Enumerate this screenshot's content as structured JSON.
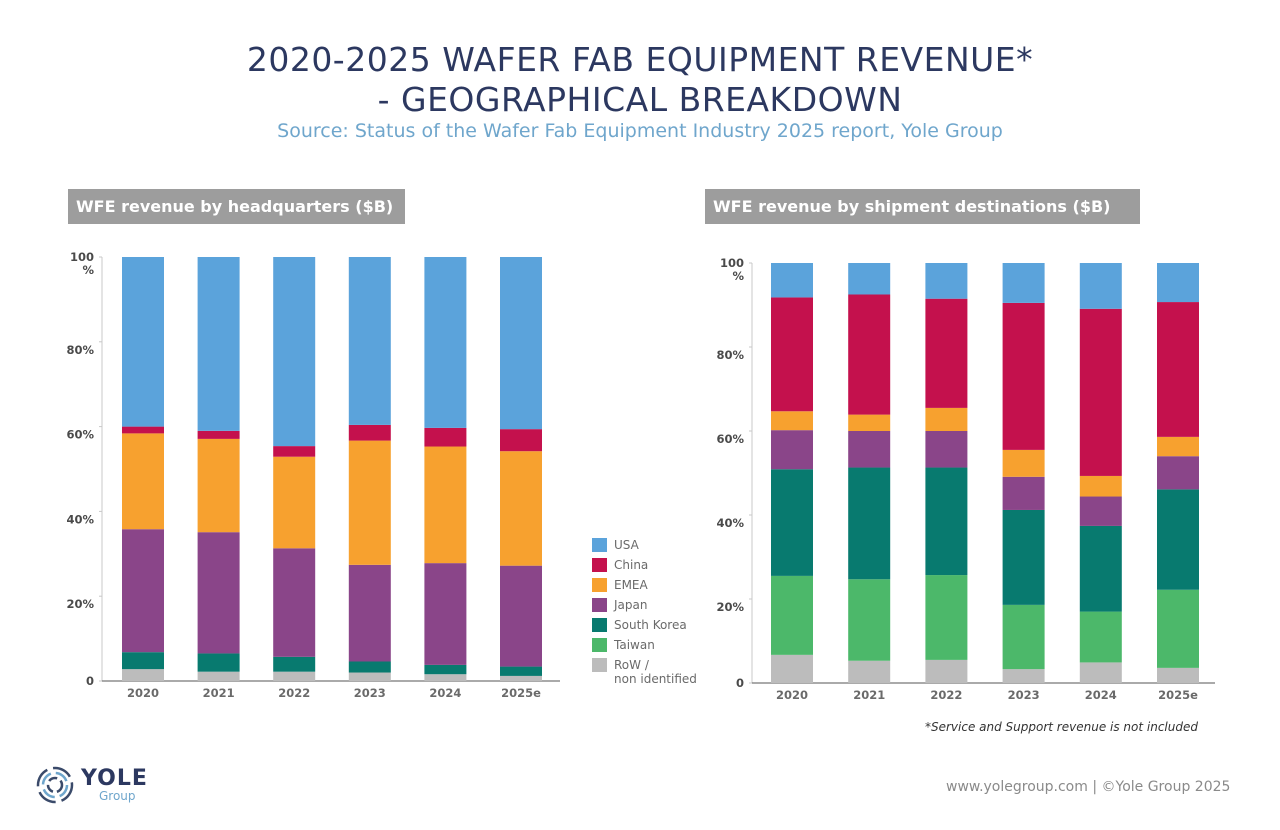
{
  "header": {
    "title_line1": "2020-2025 WAFER FAB EQUIPMENT REVENUE*",
    "title_line2": "- GEOGRAPHICAL BREAKDOWN",
    "subtitle": "Source: Status of the Wafer Fab Equipment Industry 2025 report, Yole Group"
  },
  "legend": [
    {
      "name": "USA",
      "color": "#5ba3db"
    },
    {
      "name": "China",
      "color": "#c4114d"
    },
    {
      "name": "EMEA",
      "color": "#f7a12f"
    },
    {
      "name": "Japan",
      "color": "#8a4589"
    },
    {
      "name": "South Korea",
      "color": "#087a6f"
    },
    {
      "name": "Taiwan",
      "color": "#4cb86a"
    },
    {
      "name": "RoW /\nnon identified",
      "color": "#bcbcbc"
    }
  ],
  "chart_data": [
    {
      "type": "bar",
      "stacked": true,
      "title": "WFE revenue by headquarters ($B)",
      "xlabel": "",
      "ylabel": "",
      "ylim": [
        0,
        100
      ],
      "yticks": [
        "0",
        "20%",
        "40%",
        "60%",
        "80%",
        "100\n%"
      ],
      "categories": [
        "2020",
        "2021",
        "2022",
        "2023",
        "2024",
        "2025e"
      ],
      "series": [
        {
          "name": "RoW / non identified",
          "values": [
            2.8,
            2.2,
            2.2,
            2.0,
            1.6,
            1.2
          ]
        },
        {
          "name": "Taiwan",
          "values": [
            0,
            0,
            0,
            0,
            0,
            0
          ]
        },
        {
          "name": "South Korea",
          "values": [
            4.0,
            4.3,
            3.5,
            2.6,
            2.2,
            2.2
          ]
        },
        {
          "name": "Japan",
          "values": [
            29.0,
            28.6,
            25.6,
            22.8,
            24.0,
            23.8
          ]
        },
        {
          "name": "EMEA",
          "values": [
            22.6,
            22.0,
            21.6,
            29.3,
            27.5,
            27.0
          ]
        },
        {
          "name": "China",
          "values": [
            1.6,
            1.9,
            2.5,
            3.7,
            4.4,
            5.2
          ]
        },
        {
          "name": "USA",
          "values": [
            40.0,
            41.0,
            44.6,
            39.6,
            40.3,
            40.6
          ]
        }
      ]
    },
    {
      "type": "bar",
      "stacked": true,
      "title": "WFE revenue by shipment destinations ($B)",
      "xlabel": "",
      "ylabel": "",
      "ylim": [
        0,
        100
      ],
      "yticks": [
        "0",
        "20%",
        "40%",
        "60%",
        "80%",
        "100\n%"
      ],
      "categories": [
        "2020",
        "2021",
        "2022",
        "2023",
        "2024",
        "2025e"
      ],
      "series": [
        {
          "name": "RoW / non identified",
          "values": [
            6.7,
            5.3,
            5.5,
            3.3,
            4.9,
            3.6
          ]
        },
        {
          "name": "Taiwan",
          "values": [
            18.8,
            19.4,
            20.2,
            15.3,
            12.1,
            18.6
          ]
        },
        {
          "name": "South Korea",
          "values": [
            25.4,
            26.6,
            25.6,
            22.6,
            20.4,
            23.9
          ]
        },
        {
          "name": "Japan",
          "values": [
            9.3,
            8.7,
            8.7,
            7.9,
            7.0,
            7.9
          ]
        },
        {
          "name": "EMEA",
          "values": [
            4.5,
            3.9,
            5.5,
            6.4,
            4.9,
            4.6
          ]
        },
        {
          "name": "China",
          "values": [
            27.1,
            28.6,
            26.0,
            35.0,
            39.8,
            32.1
          ]
        },
        {
          "name": "USA",
          "values": [
            8.2,
            7.5,
            8.5,
            9.5,
            10.9,
            9.3
          ]
        }
      ]
    }
  ],
  "footnote": "*Service and Support revenue is not included",
  "footer": {
    "copyright": "www.yolegroup.com | ©Yole Group 2025",
    "logo_main": "YOLE",
    "logo_sub": "Group"
  }
}
